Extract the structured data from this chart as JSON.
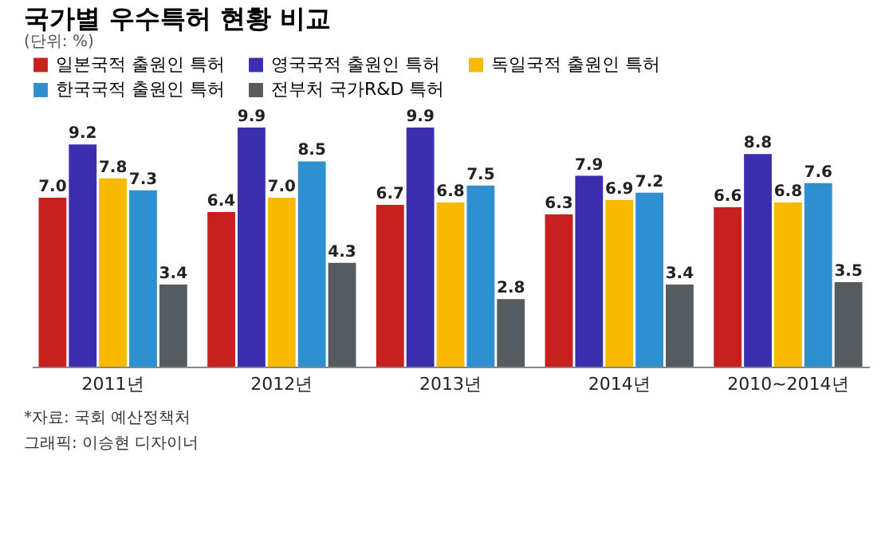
{
  "chart_data": {
    "type": "bar",
    "title": "국가별 우수특허 현황 비교",
    "subtitle": "(단위: %)",
    "categories": [
      "2011년",
      "2012년",
      "2013년",
      "2014년",
      "2010~2014년"
    ],
    "series": [
      {
        "name": "일본국적 출원인 특허",
        "color": "#c8201f",
        "values": [
          7.0,
          6.4,
          6.7,
          6.3,
          6.6
        ],
        "value_labels": [
          "7.0",
          "6.4",
          "6.7",
          "6.3",
          "6.6"
        ]
      },
      {
        "name": "영국국적 출원인 특허",
        "color": "#3b2fb0",
        "values": [
          9.2,
          9.9,
          9.9,
          7.9,
          8.8
        ],
        "value_labels": [
          "9.2",
          "9.9",
          "9.9",
          "7.9",
          "8.8"
        ]
      },
      {
        "name": "독일국적 출원인 특허",
        "color": "#f8b900",
        "values": [
          7.8,
          7.0,
          6.8,
          6.9,
          6.8
        ],
        "value_labels": [
          "7.8",
          "7.0",
          "6.8",
          "6.9",
          "6.8"
        ]
      },
      {
        "name": "한국국적 출원인 특허",
        "color": "#2e90d0",
        "values": [
          7.3,
          8.5,
          7.5,
          7.2,
          7.6
        ],
        "value_labels": [
          "7.3",
          "8.5",
          "7.5",
          "7.2",
          "7.6"
        ]
      },
      {
        "name": "전부처 국가R&D 특허",
        "color": "#555b5e",
        "values": [
          3.4,
          4.3,
          2.8,
          3.4,
          3.5
        ],
        "value_labels": [
          "3.4",
          "4.3",
          "2.8",
          "3.4",
          "3.5"
        ]
      }
    ],
    "tick_labels": "x",
    "legend": "top",
    "annotations": [
      "*자료: 국회 예산정책처",
      "그래픽: 이승현 디자이너"
    ]
  }
}
